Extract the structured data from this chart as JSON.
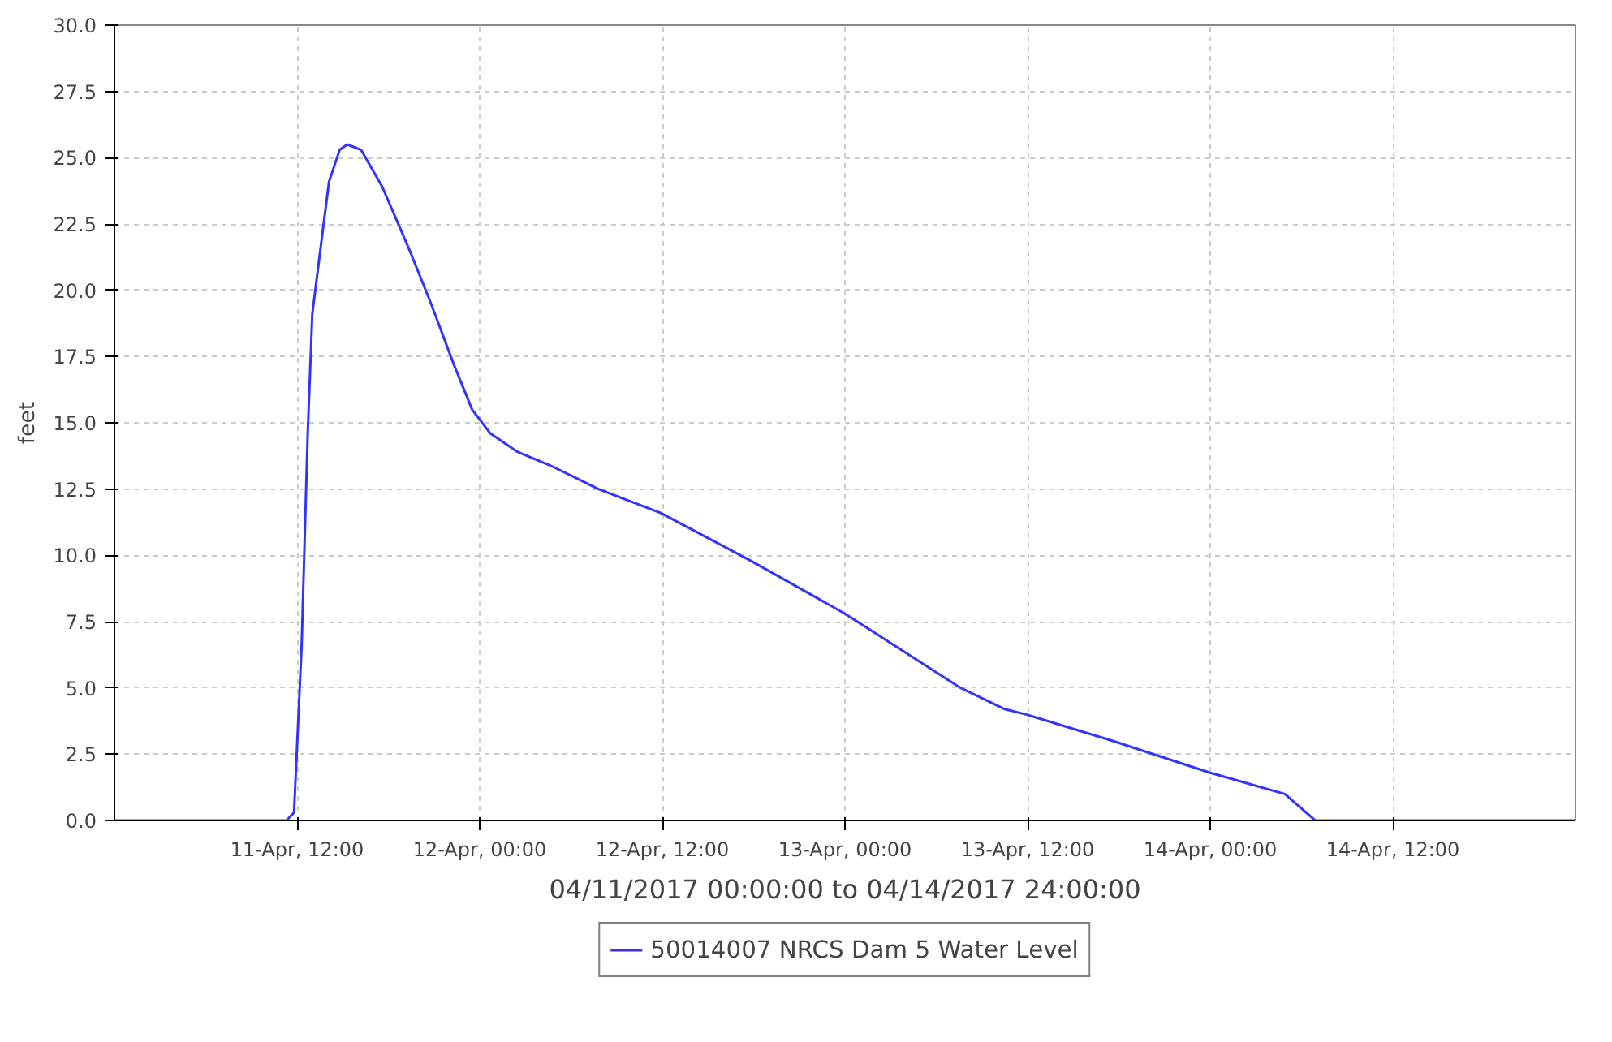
{
  "chart_data": {
    "type": "line",
    "xlabel": "04/11/2017 00:00:00 to 04/14/2017 24:00:00",
    "ylabel": "feet",
    "xlim": [
      "2017-04-11T00:00",
      "2017-04-15T00:00"
    ],
    "xticks": [
      {
        "value": "2017-04-11T12:00",
        "label": "11-Apr, 12:00"
      },
      {
        "value": "2017-04-12T00:00",
        "label": "12-Apr, 00:00"
      },
      {
        "value": "2017-04-12T12:00",
        "label": "12-Apr, 12:00"
      },
      {
        "value": "2017-04-13T00:00",
        "label": "13-Apr, 00:00"
      },
      {
        "value": "2017-04-13T12:00",
        "label": "13-Apr, 12:00"
      },
      {
        "value": "2017-04-14T00:00",
        "label": "14-Apr, 00:00"
      },
      {
        "value": "2017-04-14T12:00",
        "label": "14-Apr, 12:00"
      }
    ],
    "ylim": [
      0,
      30
    ],
    "yticks": [
      {
        "value": 0,
        "label": "0.0"
      },
      {
        "value": 2.5,
        "label": "2.5"
      },
      {
        "value": 5,
        "label": "5.0"
      },
      {
        "value": 7.5,
        "label": "7.5"
      },
      {
        "value": 10,
        "label": "10.0"
      },
      {
        "value": 12.5,
        "label": "12.5"
      },
      {
        "value": 15,
        "label": "15.0"
      },
      {
        "value": 17.5,
        "label": "17.5"
      },
      {
        "value": 20,
        "label": "20.0"
      },
      {
        "value": 22.5,
        "label": "22.5"
      },
      {
        "value": 25,
        "label": "25.0"
      },
      {
        "value": 27.5,
        "label": "27.5"
      },
      {
        "value": 30,
        "label": "30.0"
      }
    ],
    "x": [
      "2017-04-11T00:00",
      "2017-04-11T11:18",
      "2017-04-11T11:48",
      "2017-04-11T12:18",
      "2017-04-11T12:42",
      "2017-04-11T13:00",
      "2017-04-11T13:42",
      "2017-04-11T14:06",
      "2017-04-11T14:48",
      "2017-04-11T15:18",
      "2017-04-11T16:12",
      "2017-04-11T17:36",
      "2017-04-11T19:24",
      "2017-04-11T20:48",
      "2017-04-11T22:18",
      "2017-04-11T23:30",
      "2017-04-12T00:42",
      "2017-04-12T02:30",
      "2017-04-12T04:36",
      "2017-04-12T06:24",
      "2017-04-12T07:48",
      "2017-04-12T11:54",
      "2017-04-12T17:48",
      "2017-04-13T00:00",
      "2017-04-13T07:36",
      "2017-04-13T10:30",
      "2017-04-13T11:54",
      "2017-04-13T17:36",
      "2017-04-14T00:00",
      "2017-04-14T04:54",
      "2017-04-14T06:54",
      "2017-04-15T00:00"
    ],
    "series": [
      {
        "name": "50014007 NRCS Dam 5 Water Level",
        "color": "#3333ff",
        "values": [
          0,
          0,
          0.3,
          6.6,
          14.6,
          19.1,
          22.3,
          24.1,
          25.3,
          25.5,
          25.3,
          23.9,
          21.5,
          19.5,
          17.2,
          15.5,
          14.6,
          13.9,
          13.4,
          12.9,
          12.5,
          11.6,
          9.8,
          7.8,
          5.0,
          4.2,
          4.0,
          3.0,
          1.8,
          1.0,
          0,
          0
        ]
      }
    ],
    "grid": true,
    "legend": "bottom",
    "line_style": "solid",
    "marker": "none"
  }
}
